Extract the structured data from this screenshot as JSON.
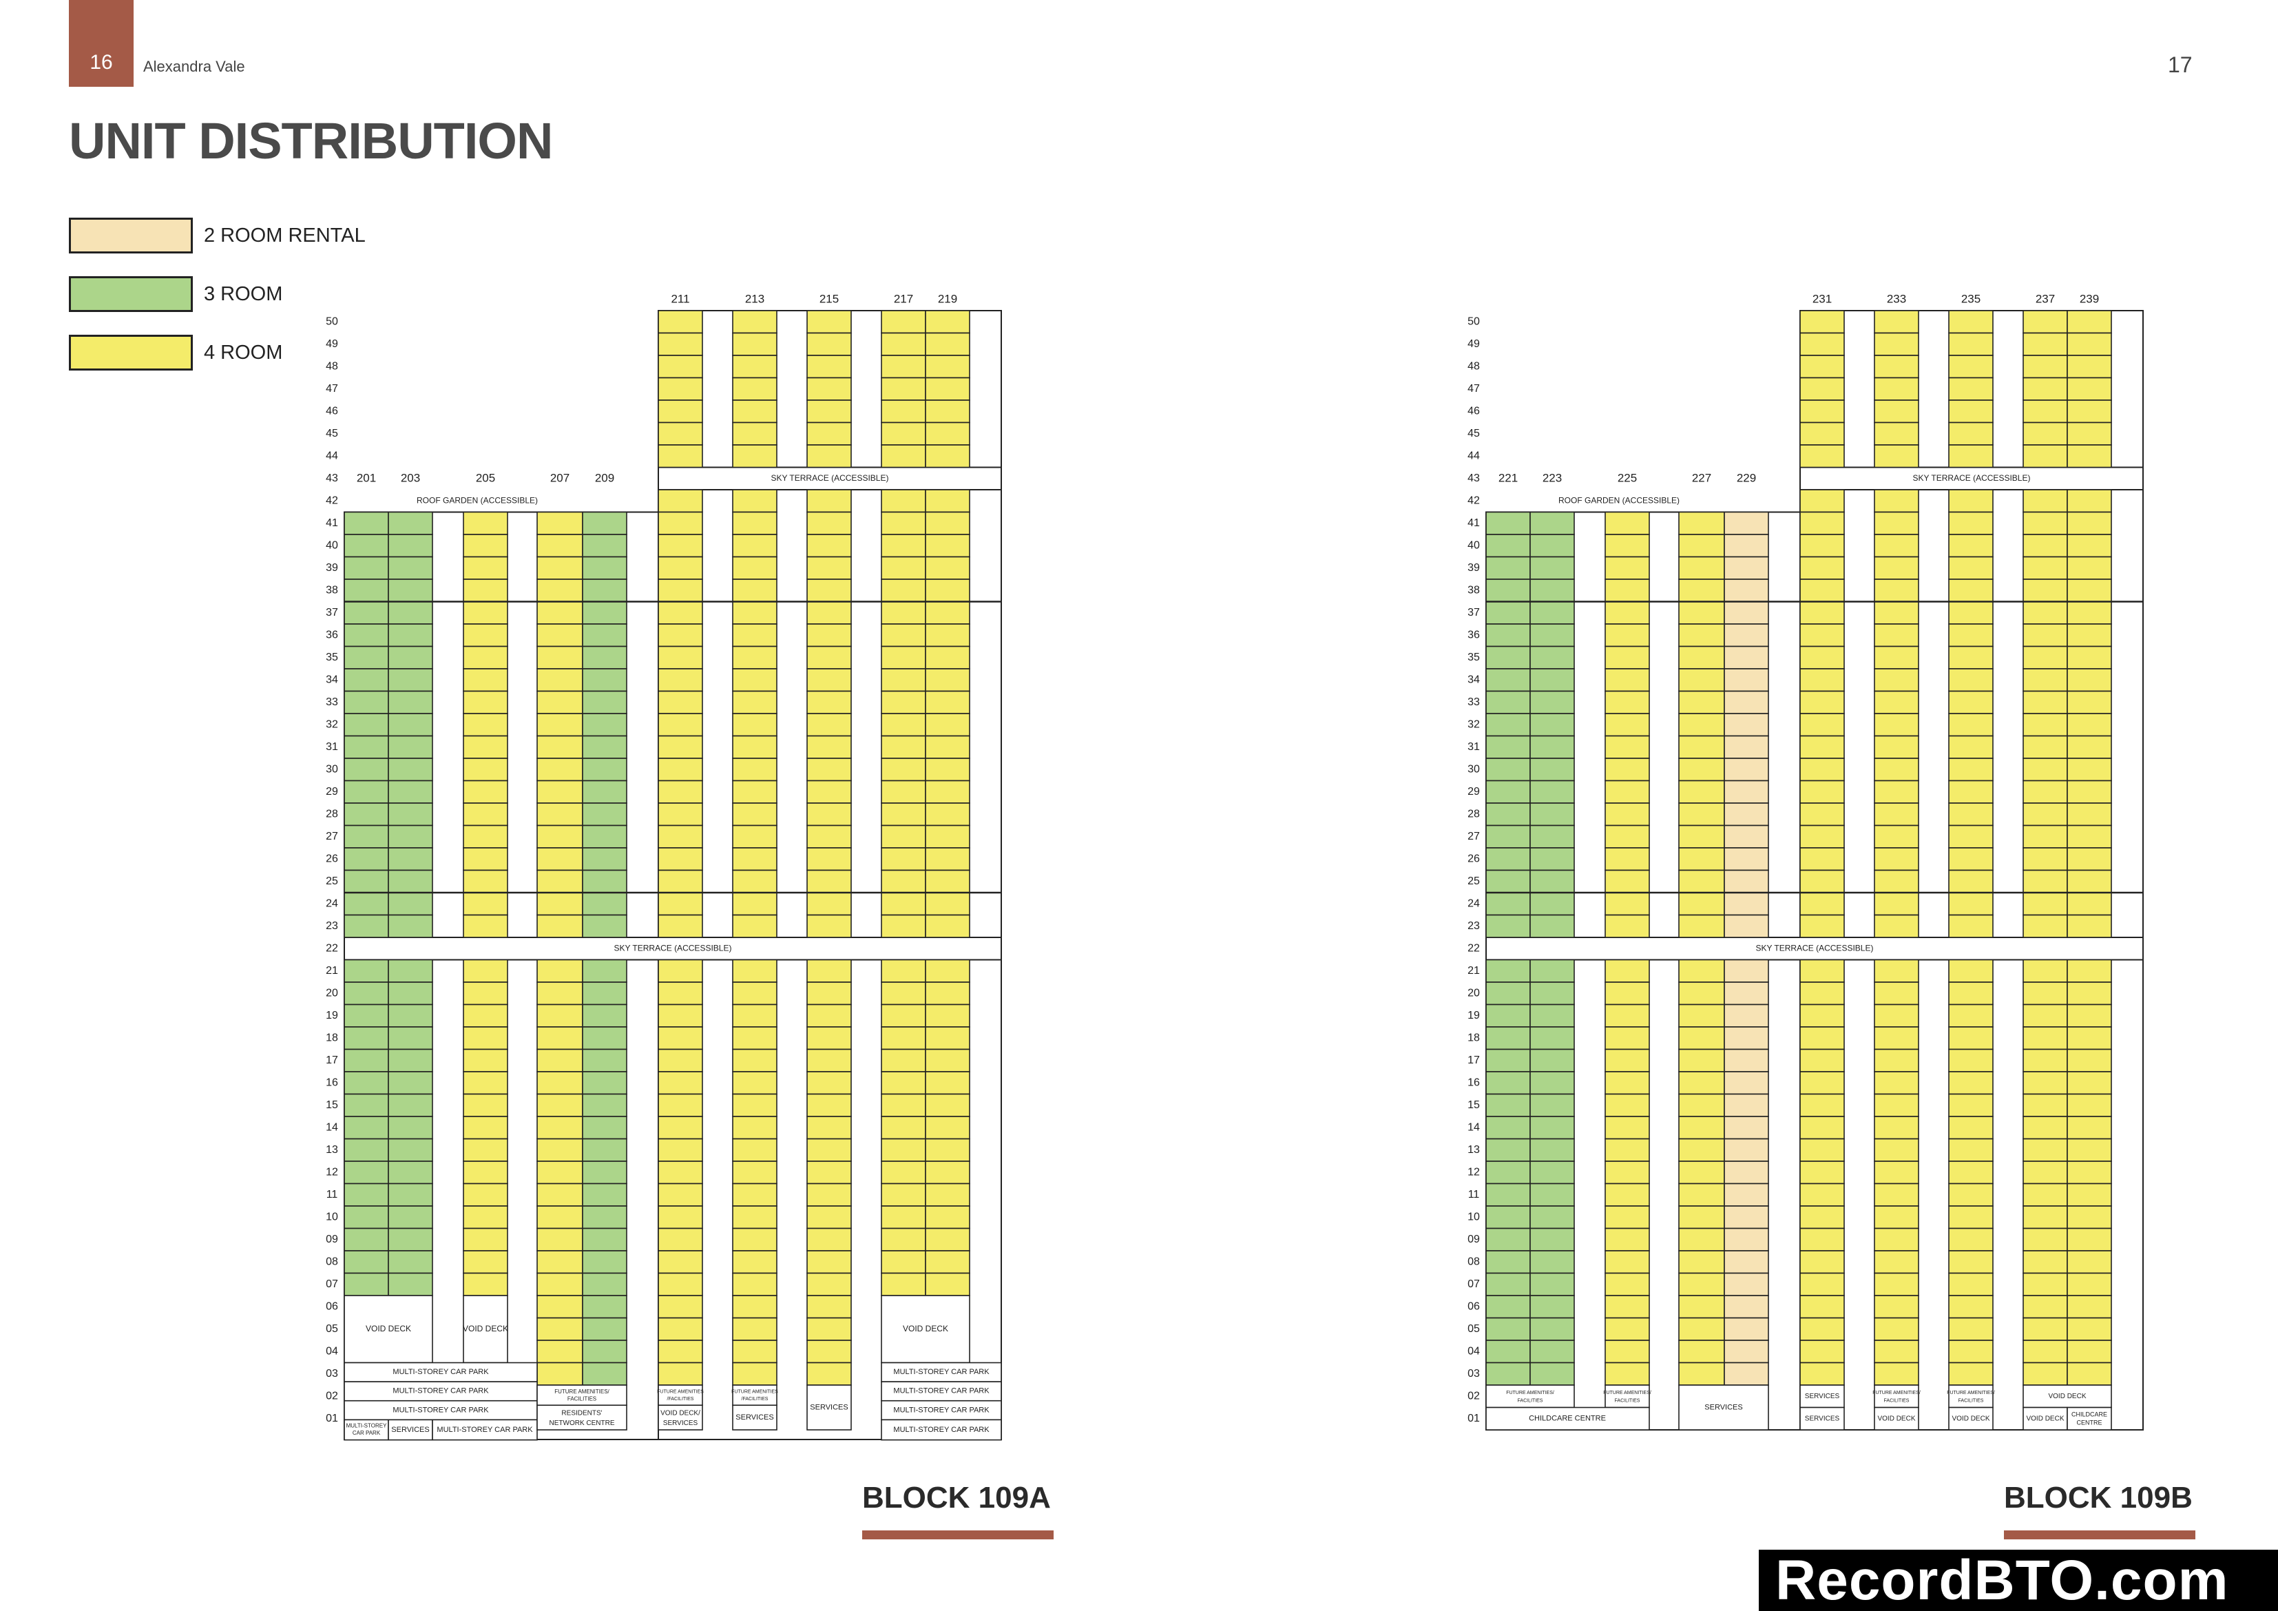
{
  "header": {
    "page_left": "16",
    "project": "Alexandra Vale",
    "page_right": "17"
  },
  "title": "UNIT DISTRIBUTION",
  "legend": [
    {
      "label": "2 ROOM RENTAL",
      "color": "#f7e3b5"
    },
    {
      "label": "3 ROOM",
      "color": "#acd58a"
    },
    {
      "label": "4 ROOM",
      "color": "#f4ec6a"
    }
  ],
  "colors": {
    "2R": "#f7e3b5",
    "3R": "#acd58a",
    "4R": "#f4ec6a",
    "accent": "#a45a47"
  },
  "blocks": [
    {
      "name": "BLOCK 109A",
      "low_units": [
        "201",
        "203",
        "205",
        "207",
        "209"
      ],
      "tower_units": [
        "211",
        "213",
        "215",
        "217",
        "219"
      ],
      "low_types": [
        "3R",
        "3R",
        "4R",
        "4R",
        "3R"
      ],
      "tower_types": [
        "4R",
        "4R",
        "4R",
        "4R",
        "4R"
      ],
      "roof_garden": "ROOF GARDEN (ACCESSIBLE)",
      "sky_terrace_43": "SKY TERRACE (ACCESSIBLE)",
      "sky_terrace_22": "SKY TERRACE (ACCESSIBLE)",
      "ground": {
        "void_deck_1": "VOID DECK",
        "void_deck_2": "VOID DECK",
        "void_deck_3": "VOID DECK",
        "mscp_03": "MULTI-STOREY CAR PARK",
        "mscp_02": "MULTI-STOREY CAR PARK",
        "mscp_01a": "MULTI-STOREY CAR PARK",
        "mscp_01b_1": "MULTI-STOREY",
        "mscp_01b_2": "CAR PARK",
        "services_01": "SERVICES",
        "mscp_01c": "MULTI-STOREY CAR PARK",
        "future_1": "FUTURE AMENITIES/",
        "future_2": "FACILITIES",
        "rnc_1": "RESIDENTS'",
        "rnc_2": "NETWORK CENTRE",
        "fa211_1": "FUTURE AMENITIES",
        "fa211_2": "/FACILITIES",
        "vd211_1": "VOID DECK/",
        "vd211_2": "SERVICES",
        "fa213_1": "FUTURE AMENITIES",
        "fa213_2": "/FACILITIES",
        "services_213": "SERVICES",
        "services_215": "SERVICES",
        "mscp_r03": "MULTI-STOREY CAR PARK",
        "mscp_r02": "MULTI-STOREY CAR PARK",
        "mscp_r01": "MULTI-STOREY CAR PARK",
        "mscp_r00": "MULTI-STOREY CAR PARK"
      }
    },
    {
      "name": "BLOCK 109B",
      "low_units": [
        "221",
        "223",
        "225",
        "227",
        "229"
      ],
      "tower_units": [
        "231",
        "233",
        "235",
        "237",
        "239"
      ],
      "low_types": [
        "3R",
        "3R",
        "4R",
        "4R",
        "2R"
      ],
      "tower_types": [
        "4R",
        "4R",
        "4R",
        "4R",
        "4R"
      ],
      "roof_garden": "ROOF GARDEN (ACCESSIBLE)",
      "sky_terrace_43": "SKY TERRACE (ACCESSIBLE)",
      "sky_terrace_22": "SKY TERRACE (ACCESSIBLE)",
      "ground": {
        "fa221_1": "FUTURE AMENITIES/",
        "fa221_2": "FACILITIES",
        "fa225_1": "FUTURE AMENITIES/",
        "fa225_2": "FACILITIES",
        "childcare": "CHILDCARE CENTRE",
        "services_227": "SERVICES",
        "services_231a": "SERVICES",
        "services_231b": "SERVICES",
        "fa233_1": "FUTURE AMENITIES/",
        "fa233_2": "FACILITIES",
        "vd233": "VOID DECK",
        "fa235_1": "FUTURE AMENITIES/",
        "fa235_2": "FACILITIES",
        "vd235": "VOID DECK",
        "vd237_02": "VOID DECK",
        "vd237_01": "VOID DECK",
        "cc239_1": "CHILDCARE",
        "cc239_2": "CENTRE"
      }
    }
  ],
  "floors": [
    "50",
    "49",
    "48",
    "47",
    "46",
    "45",
    "44",
    "43",
    "42",
    "41",
    "40",
    "39",
    "38",
    "37",
    "36",
    "35",
    "34",
    "33",
    "32",
    "31",
    "30",
    "29",
    "28",
    "27",
    "26",
    "25",
    "24",
    "23",
    "22",
    "21",
    "20",
    "19",
    "18",
    "17",
    "16",
    "15",
    "14",
    "13",
    "12",
    "11",
    "10",
    "09",
    "08",
    "07",
    "06",
    "05",
    "04",
    "03",
    "02",
    "01"
  ],
  "watermark": "RecordBTO.com"
}
